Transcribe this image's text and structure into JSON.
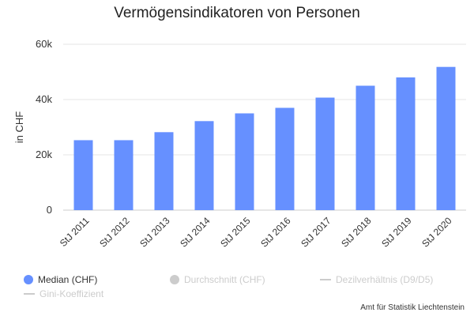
{
  "chart_data": {
    "type": "bar",
    "title": "Vermögensindikatoren von Personen",
    "ylabel": "in CHF",
    "xlabel": "",
    "categories": [
      "StJ 2011",
      "StJ 2012",
      "StJ 2013",
      "StJ 2014",
      "StJ 2015",
      "StJ 2016",
      "StJ 2017",
      "StJ 2018",
      "StJ 2019",
      "StJ 2020"
    ],
    "series": [
      {
        "name": "Median (CHF)",
        "color": "#6690ff",
        "values": [
          25300,
          25300,
          28200,
          32200,
          35000,
          37000,
          40700,
          45000,
          48000,
          51800
        ]
      }
    ],
    "ylim": [
      0,
      60000
    ],
    "yticks": [
      0,
      20000,
      40000,
      60000
    ],
    "ytick_labels": [
      "0",
      "20k",
      "40k",
      "60k"
    ],
    "grid": true,
    "legend_position": "bottom-left"
  },
  "legend": {
    "items": [
      {
        "label": "Median (CHF)",
        "shape": "dot",
        "color": "#6690ff",
        "active": true
      },
      {
        "label": "Durchschnitt (CHF)",
        "shape": "dot",
        "color": "#cccccc",
        "active": false
      },
      {
        "label": "Dezilverhältnis (D9/D5)",
        "shape": "line",
        "color": "#cccccc",
        "active": false
      },
      {
        "label": "Gini-Koeffizient",
        "shape": "line",
        "color": "#cccccc",
        "active": false
      }
    ]
  },
  "credit": "Amt für Statistik Liechtenstein"
}
